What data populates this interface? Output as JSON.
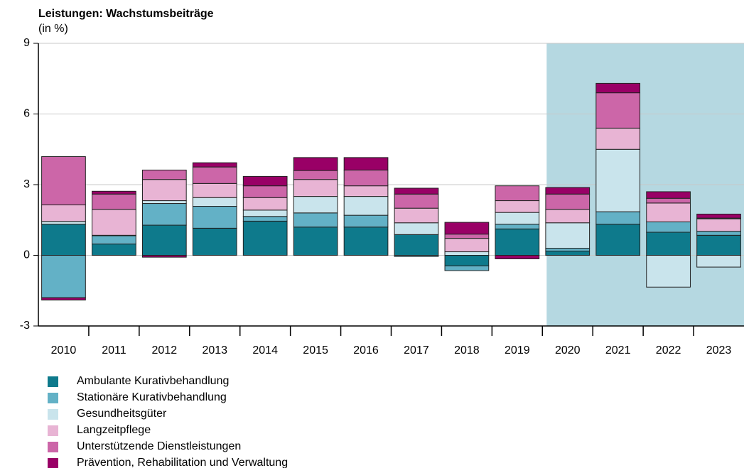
{
  "chart_data": {
    "type": "stacked_bar",
    "title": "Leistungen: Wachstumsbeiträge",
    "subtitle": "(in %)",
    "categories": [
      "2010",
      "2011",
      "2012",
      "2013",
      "2014",
      "2015",
      "2016",
      "2017",
      "2018",
      "2019",
      "2020",
      "2021",
      "2022",
      "2023"
    ],
    "series": [
      {
        "name": "Ambulante Kurativbehandlung",
        "color": "#0e7a8c",
        "values": [
          1.32,
          0.48,
          1.28,
          1.15,
          1.45,
          1.2,
          1.2,
          0.88,
          -0.45,
          1.12,
          0.18,
          1.32,
          0.98,
          0.85
        ]
      },
      {
        "name": "Stationäre Kurativbehandlung",
        "color": "#63b1c6",
        "values": [
          -1.8,
          0.35,
          0.92,
          0.93,
          0.2,
          0.6,
          0.5,
          -0.05,
          -0.2,
          0.2,
          0.12,
          0.53,
          0.44,
          0.17
        ]
      },
      {
        "name": "Gesundheitsgüter",
        "color": "#c9e4ec",
        "values": [
          0.12,
          0.02,
          0.12,
          0.37,
          0.27,
          0.7,
          0.8,
          0.5,
          0.15,
          0.5,
          1.08,
          2.65,
          -1.35,
          -0.5
        ]
      },
      {
        "name": "Langzeitpflege",
        "color": "#e8b4d4",
        "values": [
          0.7,
          1.1,
          0.9,
          0.6,
          0.53,
          0.72,
          0.45,
          0.62,
          0.57,
          0.5,
          0.57,
          0.9,
          0.8,
          0.53
        ]
      },
      {
        "name": "Unterstützende Dienstleistungen",
        "color": "#cc66a8",
        "values": [
          2.05,
          0.65,
          0.4,
          0.7,
          0.5,
          0.38,
          0.67,
          0.6,
          0.18,
          0.63,
          0.65,
          1.5,
          0.2,
          0.03
        ]
      },
      {
        "name": "Prävention, Rehabilitation und Verwaltung",
        "color": "#990066",
        "values": [
          -0.1,
          0.12,
          -0.08,
          0.18,
          0.4,
          0.55,
          0.53,
          0.25,
          0.5,
          -0.15,
          0.28,
          0.4,
          0.28,
          0.17
        ]
      }
    ],
    "ylim": [
      -3,
      9
    ],
    "yticks": [
      -3,
      0,
      3,
      6,
      9
    ],
    "grid": true,
    "highlight": {
      "from": "2020",
      "to": "2023",
      "color": "#b5d8e1"
    },
    "legend": "bottom-left"
  }
}
